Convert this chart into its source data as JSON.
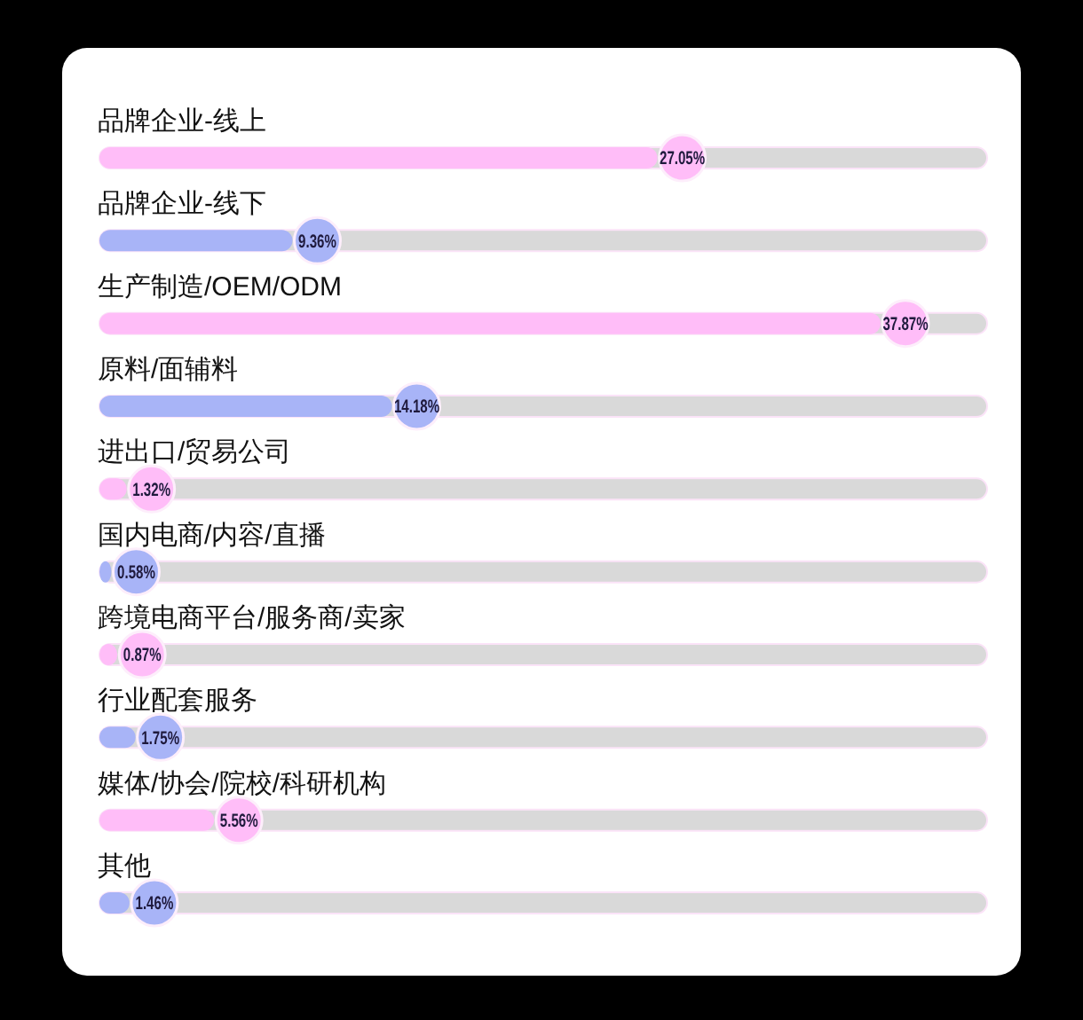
{
  "chart_data": {
    "type": "bar",
    "orientation": "horizontal",
    "categories": [
      "品牌企业-线上",
      "品牌企业-线下",
      "生产制造/OEM/ODM",
      "原料/面辅料",
      "进出口/贸易公司",
      "国内电商/内容/直播",
      "跨境电商平台/服务商/卖家",
      "行业配套服务",
      "媒体/协会/院校/科研机构",
      "其他"
    ],
    "values": [
      27.05,
      9.36,
      37.87,
      14.18,
      1.32,
      0.58,
      0.87,
      1.75,
      5.56,
      1.46
    ],
    "value_labels": [
      "27.05%",
      "9.36%",
      "37.87%",
      "14.18%",
      "1.32%",
      "0.58%",
      "0.87%",
      "1.75%",
      "5.56%",
      "1.46%"
    ],
    "colors": [
      "#ffbdf8",
      "#a8b4f7",
      "#ffbdf8",
      "#a8b4f7",
      "#ffbdf8",
      "#a8b4f7",
      "#ffbdf8",
      "#a8b4f7",
      "#ffbdf8",
      "#a8b4f7"
    ]
  }
}
